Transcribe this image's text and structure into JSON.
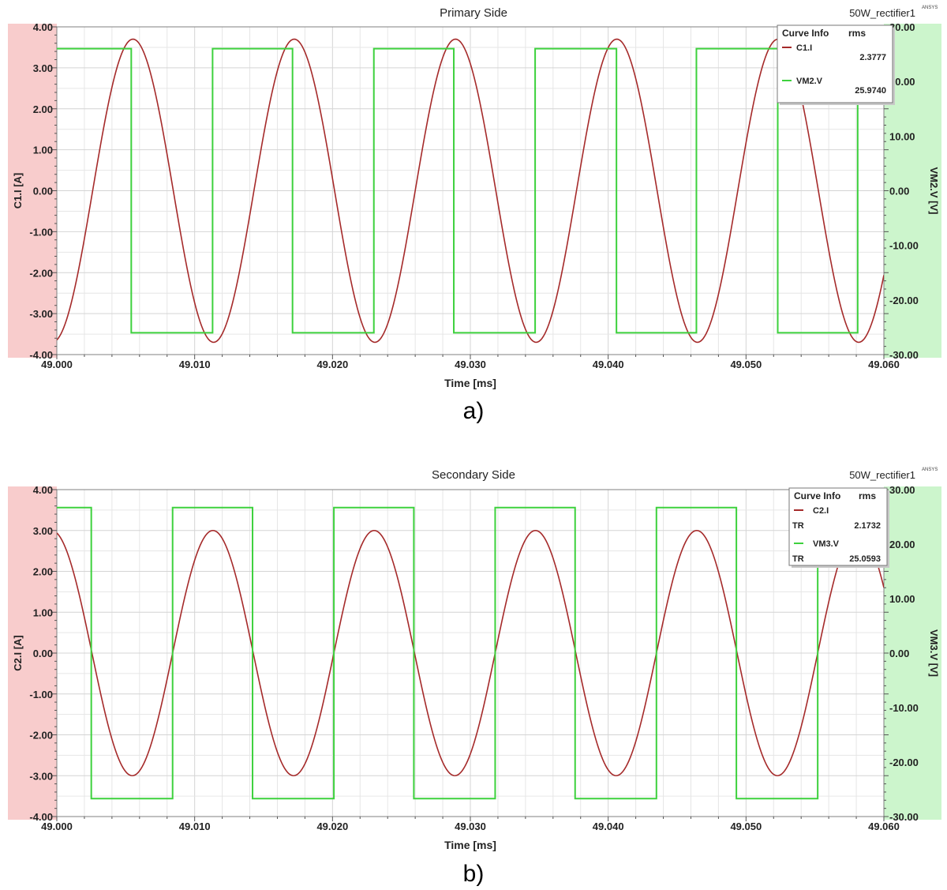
{
  "chart_data": [
    {
      "type": "line",
      "title": "Primary Side",
      "project_label": "50W_rectifier1",
      "vendor_label": "ANSYS",
      "xlabel": "Time [ms]",
      "ylabel_left": "C1.I [A]",
      "ylabel_right": "VM2.V [V]",
      "xlim": [
        49.0,
        49.06
      ],
      "ylim_left": [
        -4,
        4
      ],
      "ylim_right": [
        -30,
        30
      ],
      "x_ticks": [
        "49.000",
        "49.010",
        "49.020",
        "49.030",
        "49.040",
        "49.050",
        "49.060"
      ],
      "y_ticks_left": [
        "4.00",
        "3.00",
        "2.00",
        "1.00",
        "0.00",
        "-1.00",
        "-2.00",
        "-3.00",
        "-4.00"
      ],
      "y_ticks_right": [
        "30.00",
        "20.00",
        "10.00",
        "0.00",
        "-10.00",
        "-20.00",
        "-30.00"
      ],
      "grid": true,
      "legend": {
        "position": "top-right",
        "header": [
          "Curve Info",
          "rms"
        ],
        "entries": [
          {
            "name": "C1.I",
            "sub": "",
            "value": "2.3777"
          },
          {
            "name": "VM2.V",
            "sub": "",
            "value": "25.9740"
          }
        ]
      },
      "series": [
        {
          "name": "C1.I",
          "axis": "left",
          "color": "#a52a2a",
          "shape": "sine",
          "amplitude": 3.7,
          "period_ms": 0.0117,
          "zero_cross_ms": 49.0143,
          "rising": true
        },
        {
          "name": "VM2.V",
          "axis": "right",
          "color": "#3dd13d",
          "shape": "square",
          "high": 26.0,
          "low": -26.0,
          "transitions": [
            {
              "x": 49.0054,
              "to": "low"
            },
            {
              "x": 49.0113,
              "to": "high"
            },
            {
              "x": 49.0171,
              "to": "low"
            },
            {
              "x": 49.023,
              "to": "high"
            },
            {
              "x": 49.0288,
              "to": "low"
            },
            {
              "x": 49.0347,
              "to": "high"
            },
            {
              "x": 49.0406,
              "to": "low"
            },
            {
              "x": 49.0464,
              "to": "high"
            },
            {
              "x": 49.0523,
              "to": "low"
            },
            {
              "x": 49.0581,
              "to": "high"
            }
          ]
        }
      ],
      "caption": "a)"
    },
    {
      "type": "line",
      "title": "Secondary Side",
      "project_label": "50W_rectifier1",
      "vendor_label": "ANSYS",
      "xlabel": "Time [ms]",
      "ylabel_left": "C2.I [A]",
      "ylabel_right": "VM3.V [V]",
      "xlim": [
        49.0,
        49.06
      ],
      "ylim_left": [
        -4,
        4
      ],
      "ylim_right": [
        -30,
        30
      ],
      "x_ticks": [
        "49.000",
        "49.010",
        "49.020",
        "49.030",
        "49.040",
        "49.050",
        "49.060"
      ],
      "y_ticks_left": [
        "4.00",
        "3.00",
        "2.00",
        "1.00",
        "0.00",
        "-1.00",
        "-2.00",
        "-3.00",
        "-4.00"
      ],
      "y_ticks_right": [
        "30.00",
        "20.00",
        "10.00",
        "0.00",
        "-10.00",
        "-20.00",
        "-30.00"
      ],
      "grid": true,
      "legend": {
        "position": "top-right",
        "header": [
          "Curve Info",
          "rms"
        ],
        "entries": [
          {
            "name": "C2.I",
            "sub": "TR",
            "value": "2.1732"
          },
          {
            "name": "VM3.V",
            "sub": "TR",
            "value": "25.0593"
          }
        ]
      },
      "series": [
        {
          "name": "C2.I",
          "axis": "left",
          "color": "#a52a2a",
          "shape": "sine",
          "amplitude": 3.0,
          "period_ms": 0.0117,
          "zero_cross_ms": 49.0084,
          "rising": true
        },
        {
          "name": "VM3.V",
          "axis": "right",
          "color": "#3dd13d",
          "shape": "square",
          "high": 26.7,
          "low": -26.7,
          "transitions": [
            {
              "x": 49.0025,
              "to": "low"
            },
            {
              "x": 49.0084,
              "to": "high"
            },
            {
              "x": 49.0142,
              "to": "low"
            },
            {
              "x": 49.0201,
              "to": "high"
            },
            {
              "x": 49.0259,
              "to": "low"
            },
            {
              "x": 49.0318,
              "to": "high"
            },
            {
              "x": 49.0376,
              "to": "low"
            },
            {
              "x": 49.0435,
              "to": "high"
            },
            {
              "x": 49.0493,
              "to": "low"
            },
            {
              "x": 49.0552,
              "to": "high"
            }
          ]
        }
      ],
      "caption": "b)"
    }
  ]
}
